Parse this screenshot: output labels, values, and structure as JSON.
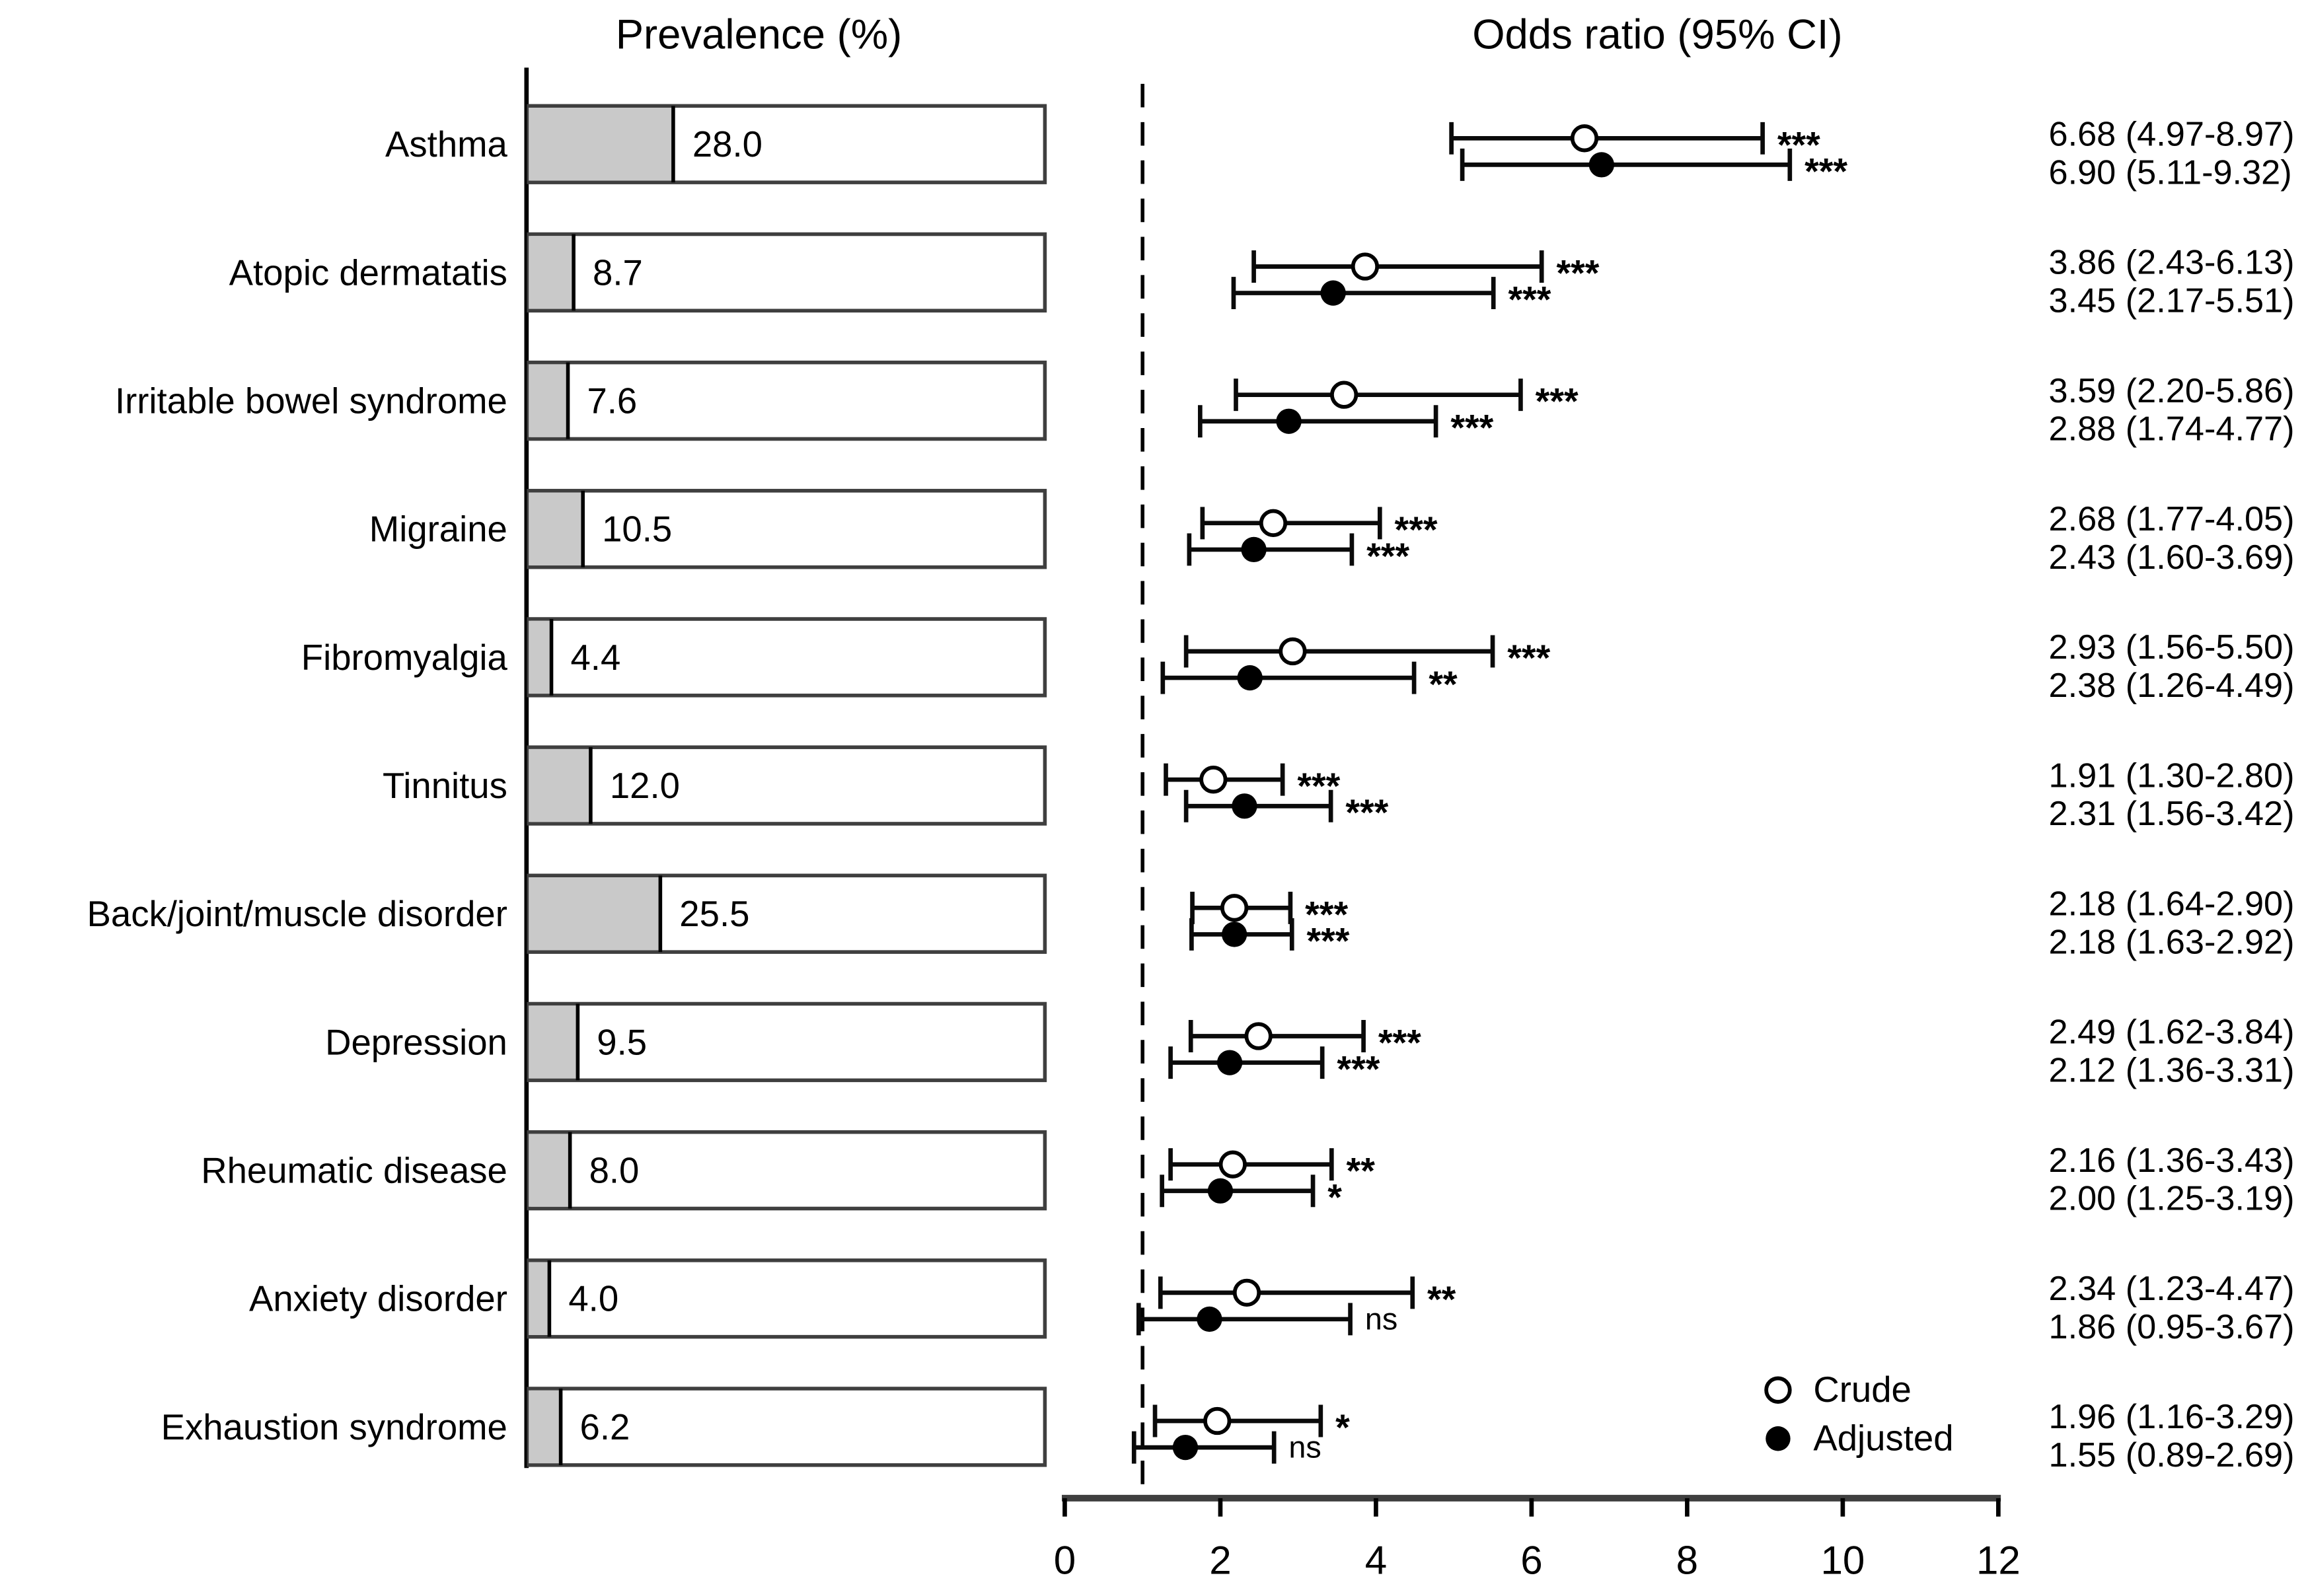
{
  "figure": {
    "left_title": "Prevalence (%)",
    "right_title": "Odds ratio (95% CI)",
    "colors": {
      "bar_fill": "#c9c9c9",
      "bar_border": "#3f3f3f",
      "axis": "#3f3f3f",
      "marker": "#000000",
      "background": "#ffffff"
    }
  },
  "chart_data": [
    {
      "type": "bar",
      "title": "Prevalence (%)",
      "orientation": "horizontal",
      "xlim": [
        0,
        100
      ],
      "grid": false,
      "categories": [
        "Asthma",
        "Atopic dermatatis",
        "Irritable bowel syndrome",
        "Migraine",
        "Fibromyalgia",
        "Tinnitus",
        "Back/joint/muscle disorder",
        "Depression",
        "Rheumatic disease",
        "Anxiety disorder",
        "Exhaustion syndrome"
      ],
      "values": [
        28.0,
        8.7,
        7.6,
        10.5,
        4.4,
        12.0,
        25.5,
        9.5,
        8.0,
        4.0,
        6.2
      ],
      "value_labels": [
        "28.0",
        "8.7",
        "7.6",
        "10.5",
        "4.4",
        "12.0",
        "25.5",
        "9.5",
        "8.0",
        "4.0",
        "6.2"
      ]
    },
    {
      "type": "scatter",
      "subtype": "forest-plot-with-error-bars",
      "title": "Odds ratio (95% CI)",
      "xlabel": "",
      "xlim": [
        0,
        12
      ],
      "x_ticks": [
        "0",
        "2",
        "4",
        "6",
        "8",
        "10",
        "12"
      ],
      "reference_line_x": 1,
      "grid": false,
      "legend_position": "bottom-right",
      "categories": [
        "Asthma",
        "Atopic dermatatis",
        "Irritable bowel syndrome",
        "Migraine",
        "Fibromyalgia",
        "Tinnitus",
        "Back/joint/muscle disorder",
        "Depression",
        "Rheumatic disease",
        "Anxiety disorder",
        "Exhaustion syndrome"
      ],
      "series": [
        {
          "name": "Crude",
          "marker": "open-circle",
          "points": [
            {
              "or": 6.68,
              "lo": 4.97,
              "hi": 8.97,
              "sig": "***",
              "label": "6.68 (4.97-8.97)"
            },
            {
              "or": 3.86,
              "lo": 2.43,
              "hi": 6.13,
              "sig": "***",
              "label": "3.86 (2.43-6.13)"
            },
            {
              "or": 3.59,
              "lo": 2.2,
              "hi": 5.86,
              "sig": "***",
              "label": "3.59 (2.20-5.86)"
            },
            {
              "or": 2.68,
              "lo": 1.77,
              "hi": 4.05,
              "sig": "***",
              "label": "2.68 (1.77-4.05)"
            },
            {
              "or": 2.93,
              "lo": 1.56,
              "hi": 5.5,
              "sig": "***",
              "label": "2.93 (1.56-5.50)"
            },
            {
              "or": 1.91,
              "lo": 1.3,
              "hi": 2.8,
              "sig": "***",
              "label": "1.91 (1.30-2.80)"
            },
            {
              "or": 2.18,
              "lo": 1.64,
              "hi": 2.9,
              "sig": "***",
              "label": "2.18 (1.64-2.90)"
            },
            {
              "or": 2.49,
              "lo": 1.62,
              "hi": 3.84,
              "sig": "***",
              "label": "2.49 (1.62-3.84)"
            },
            {
              "or": 2.16,
              "lo": 1.36,
              "hi": 3.43,
              "sig": "**",
              "label": "2.16 (1.36-3.43)"
            },
            {
              "or": 2.34,
              "lo": 1.23,
              "hi": 4.47,
              "sig": "**",
              "label": "2.34 (1.23-4.47)"
            },
            {
              "or": 1.96,
              "lo": 1.16,
              "hi": 3.29,
              "sig": "*",
              "label": "1.96 (1.16-3.29)"
            }
          ]
        },
        {
          "name": "Adjusted",
          "marker": "filled-circle",
          "points": [
            {
              "or": 6.9,
              "lo": 5.11,
              "hi": 9.32,
              "sig": "***",
              "label": "6.90 (5.11-9.32)"
            },
            {
              "or": 3.45,
              "lo": 2.17,
              "hi": 5.51,
              "sig": "***",
              "label": "3.45 (2.17-5.51)"
            },
            {
              "or": 2.88,
              "lo": 1.74,
              "hi": 4.77,
              "sig": "***",
              "label": "2.88 (1.74-4.77)"
            },
            {
              "or": 2.43,
              "lo": 1.6,
              "hi": 3.69,
              "sig": "***",
              "label": "2.43 (1.60-3.69)"
            },
            {
              "or": 2.38,
              "lo": 1.26,
              "hi": 4.49,
              "sig": "**",
              "label": "2.38 (1.26-4.49)"
            },
            {
              "or": 2.31,
              "lo": 1.56,
              "hi": 3.42,
              "sig": "***",
              "label": "2.31 (1.56-3.42)"
            },
            {
              "or": 2.18,
              "lo": 1.63,
              "hi": 2.92,
              "sig": "***",
              "label": "2.18 (1.63-2.92)"
            },
            {
              "or": 2.12,
              "lo": 1.36,
              "hi": 3.31,
              "sig": "***",
              "label": "2.12 (1.36-3.31)"
            },
            {
              "or": 2.0,
              "lo": 1.25,
              "hi": 3.19,
              "sig": "*",
              "label": "2.00 (1.25-3.19)"
            },
            {
              "or": 1.86,
              "lo": 0.95,
              "hi": 3.67,
              "sig": "ns",
              "label": "1.86 (0.95-3.67)"
            },
            {
              "or": 1.55,
              "lo": 0.89,
              "hi": 2.69,
              "sig": "ns",
              "label": "1.55 (0.89-2.69)"
            }
          ]
        }
      ]
    }
  ]
}
